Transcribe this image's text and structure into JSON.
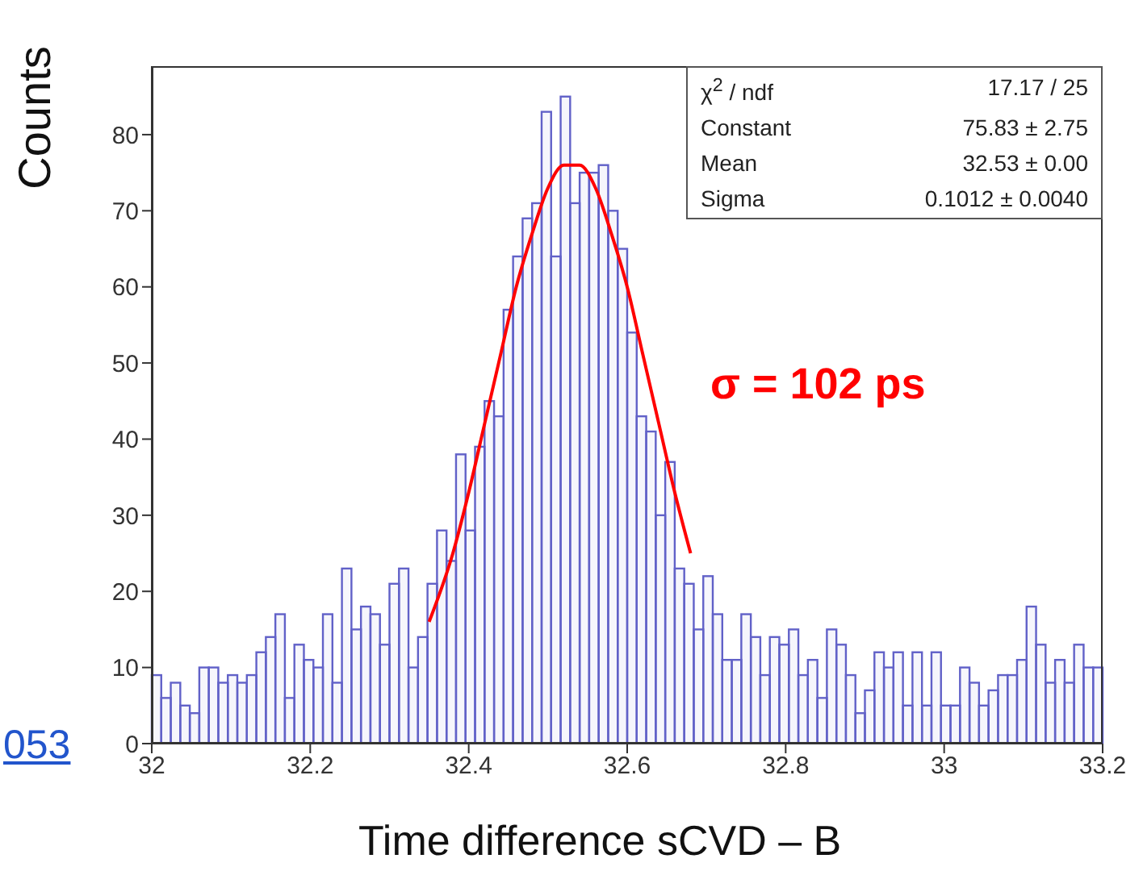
{
  "chart_data": {
    "type": "histogram",
    "xlabel": "Time difference sCVD – B",
    "ylabel": "Counts",
    "xlim": [
      32,
      33.2
    ],
    "ylim": [
      0,
      89
    ],
    "xticks": [
      32,
      32.2,
      32.4,
      32.6,
      32.8,
      33,
      33.2
    ],
    "yticks": [
      0,
      10,
      20,
      30,
      40,
      50,
      60,
      70,
      80
    ],
    "series": [
      {
        "color": "#6161c8",
        "bins": [
          32,
          32.012,
          32.024,
          32.036,
          32.048,
          32.06,
          32.072,
          32.084,
          32.096,
          32.108,
          32.12,
          32.132,
          32.144,
          32.156,
          32.168,
          32.18,
          32.192,
          32.204,
          32.216,
          32.228,
          32.24,
          32.252,
          32.264,
          32.276,
          32.288,
          32.3,
          32.312,
          32.324,
          32.336,
          32.348,
          32.36,
          32.372,
          32.384,
          32.396,
          32.408,
          32.42,
          32.432,
          32.444,
          32.456,
          32.468,
          32.48,
          32.492,
          32.504,
          32.516,
          32.528,
          32.54,
          32.552,
          32.564,
          32.576,
          32.588,
          32.6,
          32.612,
          32.624,
          32.636,
          32.648,
          32.66,
          32.672,
          32.684,
          32.696,
          32.708,
          32.72,
          32.732,
          32.744,
          32.756,
          32.768,
          32.78,
          32.792,
          32.804,
          32.816,
          32.828,
          32.84,
          32.852,
          32.864,
          32.876,
          32.888,
          32.9,
          32.912,
          32.924,
          32.936,
          32.948,
          32.96,
          32.972,
          32.984,
          32.996,
          33.008,
          33.02,
          33.032,
          33.044,
          33.056,
          33.068,
          33.08,
          33.092,
          33.104,
          33.116,
          33.128,
          33.14,
          33.152,
          33.164,
          33.176,
          33.188,
          33.2
        ],
        "values": [
          9,
          6,
          8,
          5,
          4,
          10,
          10,
          8,
          9,
          8,
          9,
          12,
          14,
          17,
          6,
          13,
          11,
          10,
          17,
          8,
          23,
          15,
          18,
          17,
          13,
          21,
          23,
          10,
          14,
          21,
          28,
          24,
          38,
          28,
          39,
          45,
          43,
          57,
          64,
          69,
          71,
          83,
          64,
          85,
          71,
          75,
          75,
          76,
          70,
          65,
          54,
          43,
          41,
          30,
          37,
          23,
          21,
          15,
          22,
          17,
          11,
          11,
          17,
          14,
          9,
          14,
          13,
          15,
          9,
          11,
          6,
          15,
          13,
          9,
          4,
          7,
          12,
          10,
          12,
          5,
          12,
          5,
          12,
          5,
          5,
          10,
          8,
          5,
          7,
          9,
          9,
          11,
          18,
          13,
          8,
          11,
          8,
          13,
          10,
          10
        ]
      },
      {
        "type": "line",
        "color": "#ff0000",
        "x": [
          32.35,
          32.38,
          32.4,
          32.42,
          32.44,
          32.46,
          32.48,
          32.5,
          32.52,
          32.53,
          32.54,
          32.56,
          32.58,
          32.6,
          32.62,
          32.64,
          32.66,
          32.68
        ],
        "values": [
          16,
          25,
          33,
          42,
          51,
          60,
          67,
          73,
          76,
          76,
          76,
          73,
          67,
          60,
          51,
          42,
          33,
          25
        ]
      }
    ],
    "annotations": [
      "χ$^{2}$ / ndf",
      "17.17 / 25",
      "Constant",
      "75.83 ± 2.75",
      "Mean",
      "32.53 ± 0.00",
      "Sigma",
      "0.1012 ± 0.0040",
      "σ = 102 ps",
      "053"
    ]
  }
}
